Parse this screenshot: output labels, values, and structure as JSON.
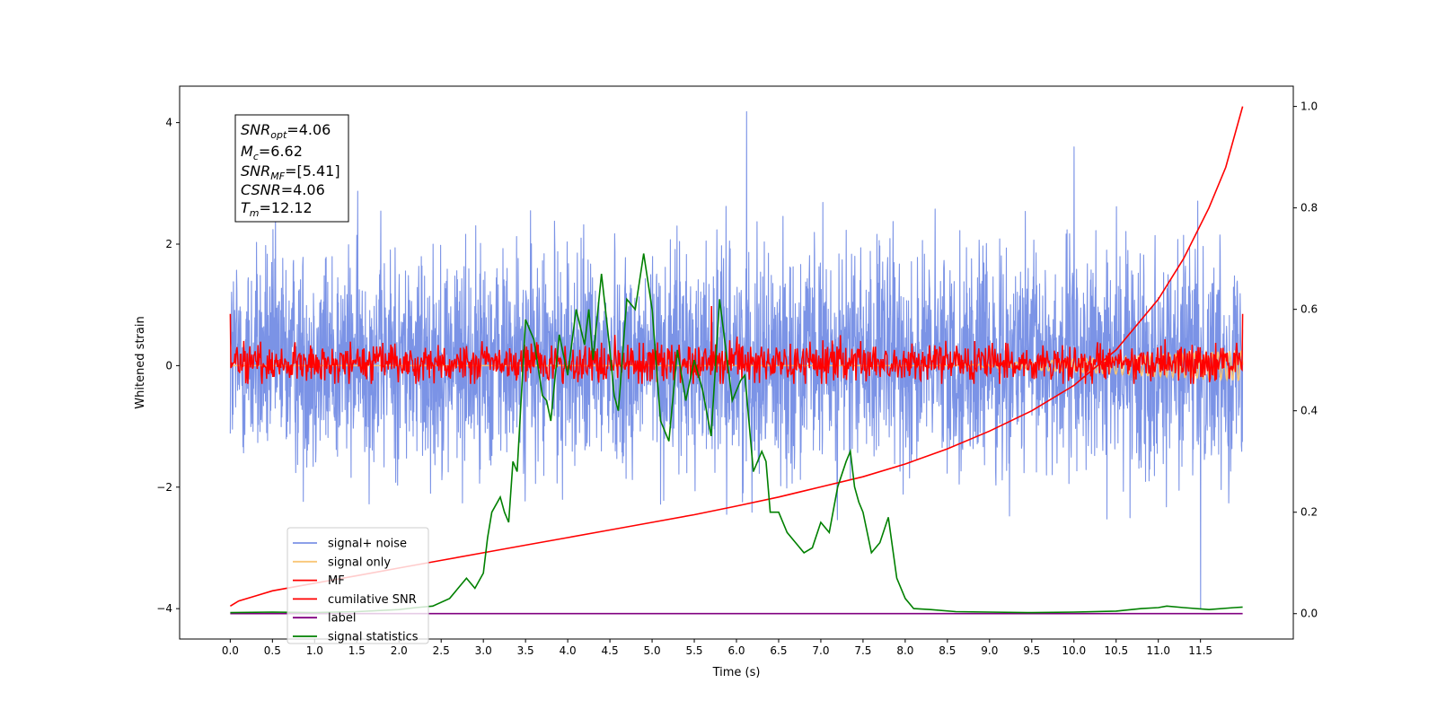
{
  "chart_data": {
    "type": "line",
    "xlabel": "Time (s)",
    "ylabel": "Whitened strain",
    "xlim": [
      -0.6,
      12.6
    ],
    "ylim": [
      -4.5,
      4.6
    ],
    "y2lim": [
      -0.05,
      1.04
    ],
    "x_ticks": [
      "0.0",
      "0.5",
      "1.0",
      "1.5",
      "2.0",
      "2.5",
      "3.0",
      "3.5",
      "4.0",
      "4.5",
      "5.0",
      "5.5",
      "6.0",
      "6.5",
      "7.0",
      "7.5",
      "8.0",
      "8.5",
      "9.0",
      "9.5",
      "10.0",
      "10.5",
      "11.0",
      "11.5"
    ],
    "y_ticks": [
      "4",
      "2",
      "0",
      "−2",
      "−4"
    ],
    "y2_ticks": [
      "1.0",
      "0.8",
      "0.6",
      "0.4",
      "0.2",
      "0.0"
    ],
    "annotation": [
      {
        "base": "SNR",
        "sub": "opt",
        "value": "=4.06"
      },
      {
        "base": "M",
        "sub": "c",
        "value": "=6.62"
      },
      {
        "base": "SNR",
        "sub": "MF",
        "value": "=[5.41]"
      },
      {
        "base": "CSNR",
        "sub": "",
        "value": "=4.06"
      },
      {
        "base": "T",
        "sub": "m",
        "value": "=12.12"
      }
    ],
    "legend": {
      "placement": "lower-left",
      "entries": [
        {
          "label": "signal+ noise",
          "color": "#7b93e6"
        },
        {
          "label": "signal only",
          "color": "#f9c677"
        },
        {
          "label": "MF",
          "color": "#ff0000"
        },
        {
          "label": "cumilative SNR",
          "color": "#ff0000"
        },
        {
          "label": "label",
          "color": "#800080"
        },
        {
          "label": "signal statistics",
          "color": "#008000"
        }
      ]
    },
    "series": [
      {
        "name": "signal+ noise",
        "axis": "left",
        "color": "#7b93e6",
        "x_range": [
          0,
          12.0
        ],
        "approx_envelope": [
          -3.3,
          4.18
        ],
        "extremes": [
          [
            6.12,
            4.18
          ],
          [
            10.0,
            3.6
          ],
          [
            11.5,
            -4.0
          ]
        ]
      },
      {
        "name": "signal only",
        "axis": "left",
        "color": "#f9c677",
        "x_range": [
          0,
          12.0
        ],
        "approx_amplitude": 0.25
      },
      {
        "name": "MF",
        "axis": "left",
        "color": "#ff0000",
        "x_range": [
          0,
          12.0
        ],
        "approx_envelope": [
          -0.3,
          0.55
        ],
        "extremes": [
          [
            0.0,
            0.85
          ],
          [
            5.7,
            0.98
          ],
          [
            12.0,
            0.85
          ]
        ]
      },
      {
        "name": "cumilative SNR",
        "axis": "right",
        "color": "#ff0000",
        "x": [
          0.0,
          0.05,
          0.1,
          0.3,
          0.5,
          1.0,
          1.5,
          2.0,
          2.5,
          3.0,
          3.5,
          4.0,
          4.5,
          5.0,
          5.5,
          6.0,
          6.5,
          7.0,
          7.5,
          8.0,
          8.5,
          9.0,
          9.5,
          10.0,
          10.5,
          11.0,
          11.3,
          11.6,
          11.8,
          12.0
        ],
        "values": [
          0.015,
          0.02,
          0.025,
          0.035,
          0.045,
          0.06,
          0.075,
          0.09,
          0.105,
          0.12,
          0.135,
          0.15,
          0.165,
          0.18,
          0.195,
          0.212,
          0.23,
          0.25,
          0.27,
          0.295,
          0.325,
          0.36,
          0.4,
          0.45,
          0.52,
          0.62,
          0.7,
          0.8,
          0.88,
          1.0
        ]
      },
      {
        "name": "label",
        "axis": "right",
        "color": "#800080",
        "x": [
          0.0,
          12.0
        ],
        "values": [
          0.0,
          0.0
        ]
      },
      {
        "name": "signal statistics",
        "axis": "right",
        "color": "#008000",
        "x": [
          0.0,
          0.5,
          1.0,
          1.5,
          2.0,
          2.2,
          2.4,
          2.6,
          2.8,
          2.9,
          3.0,
          3.05,
          3.1,
          3.2,
          3.25,
          3.3,
          3.35,
          3.4,
          3.5,
          3.55,
          3.6,
          3.7,
          3.75,
          3.8,
          3.9,
          4.0,
          4.1,
          4.2,
          4.25,
          4.3,
          4.4,
          4.5,
          4.55,
          4.6,
          4.7,
          4.8,
          4.9,
          5.0,
          5.1,
          5.2,
          5.3,
          5.4,
          5.5,
          5.6,
          5.7,
          5.8,
          5.95,
          6.05,
          6.1,
          6.2,
          6.3,
          6.35,
          6.4,
          6.5,
          6.6,
          6.7,
          6.8,
          6.9,
          7.0,
          7.1,
          7.2,
          7.3,
          7.35,
          7.4,
          7.45,
          7.5,
          7.6,
          7.7,
          7.8,
          7.9,
          8.0,
          8.1,
          8.3,
          8.6,
          9.0,
          9.5,
          10.0,
          10.5,
          10.8,
          11.0,
          11.1,
          11.3,
          11.6,
          11.9,
          12.0
        ],
        "values": [
          0.002,
          0.003,
          0.002,
          0.004,
          0.008,
          0.012,
          0.015,
          0.03,
          0.07,
          0.05,
          0.08,
          0.15,
          0.2,
          0.23,
          0.2,
          0.18,
          0.3,
          0.28,
          0.58,
          0.56,
          0.54,
          0.43,
          0.42,
          0.38,
          0.55,
          0.47,
          0.6,
          0.53,
          0.6,
          0.5,
          0.67,
          0.52,
          0.43,
          0.4,
          0.62,
          0.6,
          0.71,
          0.6,
          0.38,
          0.34,
          0.52,
          0.42,
          0.5,
          0.44,
          0.35,
          0.62,
          0.42,
          0.46,
          0.47,
          0.28,
          0.32,
          0.3,
          0.2,
          0.2,
          0.16,
          0.14,
          0.12,
          0.13,
          0.18,
          0.16,
          0.25,
          0.3,
          0.32,
          0.25,
          0.22,
          0.2,
          0.12,
          0.14,
          0.19,
          0.07,
          0.03,
          0.01,
          0.008,
          0.004,
          0.003,
          0.002,
          0.003,
          0.005,
          0.01,
          0.012,
          0.015,
          0.012,
          0.008,
          0.012,
          0.013
        ]
      }
    ]
  }
}
